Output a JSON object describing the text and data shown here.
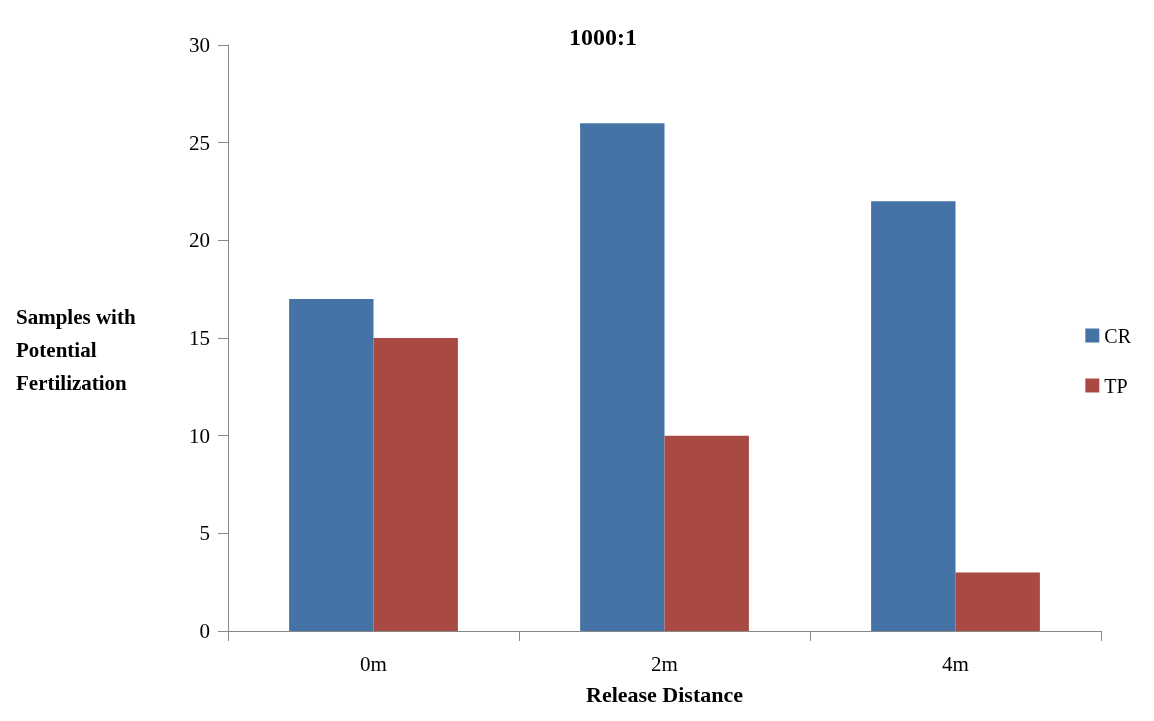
{
  "chart_data": {
    "type": "bar",
    "title": "1000:1",
    "xlabel": "Release Distance",
    "ylabel": "Samples with Potential Fertilization",
    "categories": [
      "0m",
      "2m",
      "4m"
    ],
    "series": [
      {
        "name": "CR",
        "color": "#4573a5",
        "values": [
          17,
          26,
          22
        ]
      },
      {
        "name": "TP",
        "color": "#a84a43",
        "values": [
          15,
          10,
          3
        ]
      }
    ],
    "ylim": [
      0,
      30
    ],
    "yticks": [
      0,
      5,
      10,
      15,
      20,
      25,
      30
    ],
    "grid": false,
    "legend": "right"
  }
}
